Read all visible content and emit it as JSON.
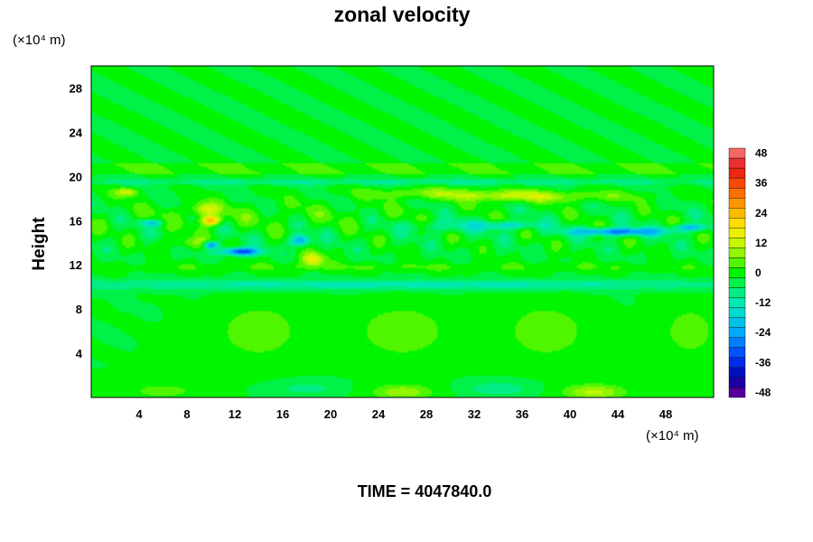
{
  "chart_data": {
    "type": "heatmap",
    "title": "zonal velocity",
    "ylabel": "Height",
    "xlabel": "",
    "x_unit": "(×10⁴ m)",
    "y_unit": "(×10⁴ m)",
    "xlim": [
      0,
      52
    ],
    "ylim": [
      0,
      30
    ],
    "x_ticks": [
      4,
      8,
      12,
      16,
      20,
      24,
      28,
      32,
      36,
      40,
      44,
      48
    ],
    "y_ticks": [
      4,
      8,
      12,
      16,
      20,
      24,
      28
    ],
    "colorbar": {
      "range": [
        -50,
        50
      ],
      "step": 4,
      "ticks": [
        48,
        36,
        24,
        12,
        0,
        -12,
        -24,
        -36,
        -48
      ]
    },
    "background_value": -2,
    "features": [
      {
        "x": 14,
        "y": 16.5,
        "sx": 14,
        "sy": 1.2,
        "v": 3
      },
      {
        "x": 28,
        "y": 18.5,
        "sx": 6,
        "sy": 0.5,
        "v": 8
      },
      {
        "x": 35,
        "y": 18.2,
        "sx": 5,
        "sy": 0.5,
        "v": 9
      },
      {
        "x": 40,
        "y": 18.2,
        "sx": 8,
        "sy": 0.5,
        "v": 6
      },
      {
        "x": 3,
        "y": 18.6,
        "sx": 1,
        "sy": 0.4,
        "v": 14
      },
      {
        "x": 9.5,
        "y": 17,
        "sx": 1.2,
        "sy": 0.6,
        "v": 14
      },
      {
        "x": 10,
        "y": 16,
        "sx": 0.8,
        "sy": 0.4,
        "v": 26
      },
      {
        "x": 18.5,
        "y": 12.5,
        "sx": 0.9,
        "sy": 0.6,
        "v": 20
      },
      {
        "x": 8,
        "y": 14,
        "sx": 2,
        "sy": 0.5,
        "v": 8
      },
      {
        "x": 30,
        "y": 15.5,
        "sx": 4,
        "sy": 0.6,
        "v": -8
      },
      {
        "x": 44,
        "y": 15,
        "sx": 4,
        "sy": 0.35,
        "v": -28
      },
      {
        "x": 50,
        "y": 15.4,
        "sx": 1.5,
        "sy": 0.3,
        "v": -20
      },
      {
        "x": 35,
        "y": 15.6,
        "sx": 2.5,
        "sy": 0.35,
        "v": -14
      },
      {
        "x": 5,
        "y": 15.8,
        "sx": 1,
        "sy": 0.3,
        "v": -16
      },
      {
        "x": 12.5,
        "y": 13.2,
        "sx": 1.6,
        "sy": 0.35,
        "v": -34
      },
      {
        "x": 10,
        "y": 13.8,
        "sx": 0.6,
        "sy": 0.3,
        "v": -28
      },
      {
        "x": 17.5,
        "y": 14.2,
        "sx": 0.8,
        "sy": 0.5,
        "v": -24
      },
      {
        "x": 26,
        "y": 10.2,
        "sx": 40,
        "sy": 0.45,
        "v": -10
      },
      {
        "x": 26,
        "y": 19.5,
        "sx": 40,
        "sy": 0.3,
        "v": -7
      },
      {
        "x": 26,
        "y": 11.8,
        "sx": 40,
        "sy": 0.4,
        "v": 4
      },
      {
        "x": 14,
        "y": 6,
        "sx": 3.5,
        "sy": 2.5,
        "v": 7
      },
      {
        "x": 26,
        "y": 6,
        "sx": 4,
        "sy": 2.5,
        "v": 7
      },
      {
        "x": 38,
        "y": 6,
        "sx": 3.5,
        "sy": 2.5,
        "v": 7
      },
      {
        "x": 50,
        "y": 6,
        "sx": 2.5,
        "sy": 2.5,
        "v": 6
      },
      {
        "x": 26,
        "y": 0.5,
        "sx": 2.5,
        "sy": 0.7,
        "v": 11
      },
      {
        "x": 42,
        "y": 0.5,
        "sx": 2.5,
        "sy": 0.7,
        "v": 13
      },
      {
        "x": 6,
        "y": 0.6,
        "sx": 3,
        "sy": 0.7,
        "v": 6
      },
      {
        "x": 34,
        "y": 0.8,
        "sx": 2.5,
        "sy": 0.6,
        "v": -8
      },
      {
        "x": 18,
        "y": 0.8,
        "sx": 2.5,
        "sy": 0.6,
        "v": -6
      }
    ]
  },
  "footer": {
    "time_text": "TIME = 4047840.0"
  }
}
